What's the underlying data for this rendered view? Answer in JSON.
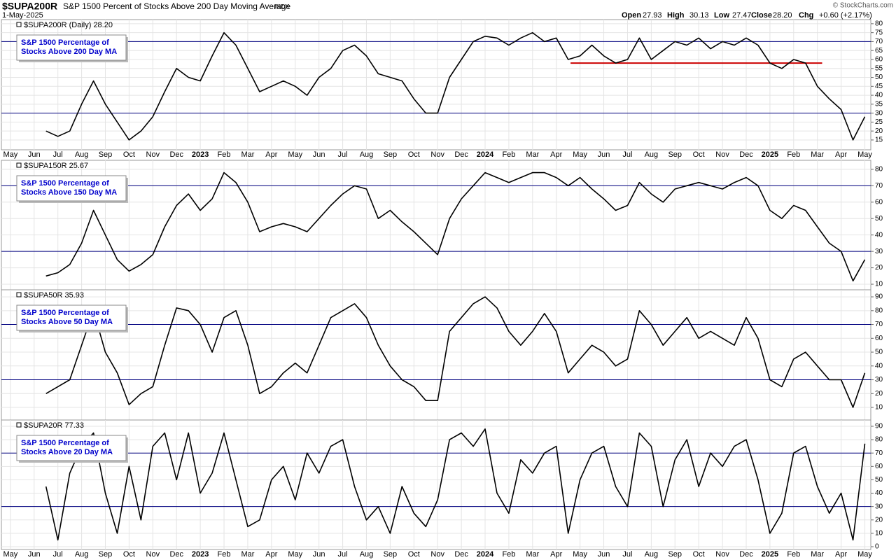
{
  "chart_data": {
    "type": "line",
    "symbol": "$SUPA200R",
    "title": "S&P 1500 Percent of Stocks Above 200 Day Moving Average",
    "exchange": "INDX",
    "date": "1-May-2025",
    "source": "© StockCharts.com",
    "stats": [
      {
        "label": "Open",
        "value": "27.93"
      },
      {
        "label": "High",
        "value": "30.13"
      },
      {
        "label": "Low",
        "value": "27.47"
      },
      {
        "label": "Close",
        "value": "28.20"
      },
      {
        "label": "Chg",
        "value": "+0.60 (+2.17%)"
      }
    ],
    "xlim": [
      -0.38,
      36.25
    ],
    "xticks": [
      {
        "value": 0,
        "label": "May"
      },
      {
        "value": 1,
        "label": "Jun"
      },
      {
        "value": 2,
        "label": "Jul"
      },
      {
        "value": 3,
        "label": "Aug"
      },
      {
        "value": 4,
        "label": "Sep"
      },
      {
        "value": 5,
        "label": "Oct"
      },
      {
        "value": 6,
        "label": "Nov"
      },
      {
        "value": 7,
        "label": "Dec"
      },
      {
        "value": 8,
        "label": "2023"
      },
      {
        "value": 9,
        "label": "Feb"
      },
      {
        "value": 10,
        "label": "Mar"
      },
      {
        "value": 11,
        "label": "Apr"
      },
      {
        "value": 12,
        "label": "May"
      },
      {
        "value": 13,
        "label": "Jun"
      },
      {
        "value": 14,
        "label": "Jul"
      },
      {
        "value": 15,
        "label": "Aug"
      },
      {
        "value": 16,
        "label": "Sep"
      },
      {
        "value": 17,
        "label": "Oct"
      },
      {
        "value": 18,
        "label": "Nov"
      },
      {
        "value": 19,
        "label": "Dec"
      },
      {
        "value": 20,
        "label": "2024"
      },
      {
        "value": 21,
        "label": "Feb"
      },
      {
        "value": 22,
        "label": "Mar"
      },
      {
        "value": 23,
        "label": "Apr"
      },
      {
        "value": 24,
        "label": "May"
      },
      {
        "value": 25,
        "label": "Jun"
      },
      {
        "value": 26,
        "label": "Jul"
      },
      {
        "value": 27,
        "label": "Aug"
      },
      {
        "value": 28,
        "label": "Sep"
      },
      {
        "value": 29,
        "label": "Oct"
      },
      {
        "value": 30,
        "label": "Nov"
      },
      {
        "value": 31,
        "label": "Dec"
      },
      {
        "value": 32,
        "label": "2025"
      },
      {
        "value": 33,
        "label": "Feb"
      },
      {
        "value": 34,
        "label": "Mar"
      },
      {
        "value": 35,
        "label": "Apr"
      },
      {
        "value": 36,
        "label": "May"
      }
    ],
    "x": [
      1.5,
      2,
      2.5,
      3,
      3.5,
      4,
      4.5,
      5,
      5.5,
      6,
      6.5,
      7,
      7.5,
      8,
      8.5,
      9,
      9.5,
      10,
      10.5,
      11,
      11.5,
      12,
      12.5,
      13,
      13.5,
      14,
      14.5,
      15,
      15.5,
      16,
      16.5,
      17,
      17.5,
      18,
      18.5,
      19,
      19.5,
      20,
      20.5,
      21,
      21.5,
      22,
      22.5,
      23,
      23.5,
      24,
      24.5,
      25,
      25.5,
      26,
      26.5,
      27,
      27.5,
      28,
      28.5,
      29,
      29.5,
      30,
      30.5,
      31,
      31.5,
      32,
      32.5,
      33,
      33.5,
      34,
      34.5,
      35,
      35.5,
      36
    ],
    "panels": [
      {
        "annotation": [
          "S&P 1500 Percentage of",
          "Stocks Above 200 Day MA"
        ],
        "ylim": [
          9.5,
          82.3
        ],
        "yticks": [
          15,
          20,
          25,
          30,
          35,
          40,
          45,
          50,
          55,
          60,
          65,
          70,
          75,
          80
        ],
        "hlines": [
          70,
          30
        ],
        "segments": [
          {
            "x": [
              23.6,
              34.2
            ],
            "y": 58,
            "color": "#cc0000"
          }
        ],
        "series": [
          {
            "name": "$SUPA200R (Daily) 28.20",
            "color": "#000000",
            "values": [
              20,
              17,
              20,
              35,
              48,
              35,
              25,
              15,
              20,
              28,
              42,
              55,
              50,
              48,
              62,
              75,
              68,
              55,
              42,
              45,
              48,
              45,
              40,
              50,
              55,
              65,
              68,
              62,
              52,
              50,
              48,
              38,
              30,
              30,
              50,
              60,
              70,
              73,
              72,
              68,
              72,
              75,
              70,
              72,
              60,
              62,
              68,
              62,
              58,
              60,
              72,
              60,
              65,
              70,
              68,
              72,
              66,
              70,
              68,
              72,
              68,
              58,
              55,
              60,
              58,
              45,
              38,
              32,
              15,
              28
            ]
          }
        ]
      },
      {
        "annotation": [
          "S&P 1500 Percentage of",
          "Stocks Above 150 Day MA"
        ],
        "ylim": [
          6.6,
          85.5
        ],
        "yticks": [
          10,
          20,
          30,
          40,
          50,
          60,
          70,
          80
        ],
        "hlines": [
          70,
          30
        ],
        "series": [
          {
            "name": "$SUPA150R 25.67",
            "color": "#000000",
            "values": [
              15,
              17,
              22,
              35,
              55,
              40,
              25,
              18,
              22,
              28,
              45,
              58,
              65,
              55,
              62,
              78,
              72,
              60,
              42,
              45,
              47,
              45,
              42,
              50,
              58,
              65,
              70,
              68,
              50,
              55,
              48,
              42,
              35,
              28,
              50,
              62,
              70,
              78,
              75,
              72,
              75,
              78,
              78,
              75,
              70,
              75,
              68,
              62,
              55,
              58,
              72,
              65,
              60,
              68,
              70,
              72,
              70,
              68,
              72,
              75,
              70,
              55,
              50,
              58,
              55,
              45,
              35,
              30,
              12,
              25
            ]
          }
        ]
      },
      {
        "annotation": [
          "S&P 1500 Percentage of",
          "Stocks Above 50 Day MA"
        ],
        "ylim": [
          0.9,
          95.1
        ],
        "yticks": [
          10,
          20,
          30,
          40,
          50,
          60,
          70,
          80,
          90
        ],
        "hlines": [
          70,
          30
        ],
        "series": [
          {
            "name": "$SUPA50R 35.93",
            "color": "#000000",
            "values": [
              20,
              25,
              30,
              55,
              80,
              50,
              35,
              12,
              20,
              25,
              55,
              82,
              80,
              70,
              50,
              75,
              80,
              55,
              20,
              25,
              35,
              42,
              35,
              55,
              75,
              80,
              85,
              75,
              55,
              40,
              30,
              25,
              15,
              15,
              65,
              75,
              85,
              90,
              82,
              65,
              55,
              65,
              78,
              65,
              35,
              45,
              55,
              50,
              40,
              45,
              80,
              70,
              55,
              65,
              75,
              60,
              65,
              60,
              55,
              75,
              60,
              30,
              25,
              45,
              50,
              40,
              30,
              30,
              10,
              35
            ]
          }
        ]
      },
      {
        "annotation": [
          "S&P 1500 Percentage of",
          "Stocks Above 20 Day MA"
        ],
        "ylim": [
          -2.1,
          94.7
        ],
        "yticks": [
          0,
          10,
          20,
          30,
          40,
          50,
          60,
          70,
          80,
          90
        ],
        "hlines": [
          70,
          30
        ],
        "series": [
          {
            "name": "$SUPA20R 77.33",
            "color": "#000000",
            "values": [
              45,
              5,
              55,
              75,
              85,
              40,
              10,
              60,
              20,
              75,
              85,
              50,
              85,
              40,
              55,
              85,
              50,
              15,
              20,
              50,
              60,
              35,
              70,
              55,
              75,
              80,
              45,
              20,
              30,
              10,
              45,
              25,
              15,
              35,
              80,
              85,
              75,
              88,
              40,
              25,
              65,
              55,
              70,
              75,
              10,
              50,
              70,
              75,
              45,
              30,
              85,
              75,
              30,
              65,
              80,
              45,
              70,
              60,
              75,
              80,
              50,
              10,
              25,
              70,
              75,
              45,
              25,
              40,
              5,
              77
            ]
          }
        ]
      }
    ]
  }
}
